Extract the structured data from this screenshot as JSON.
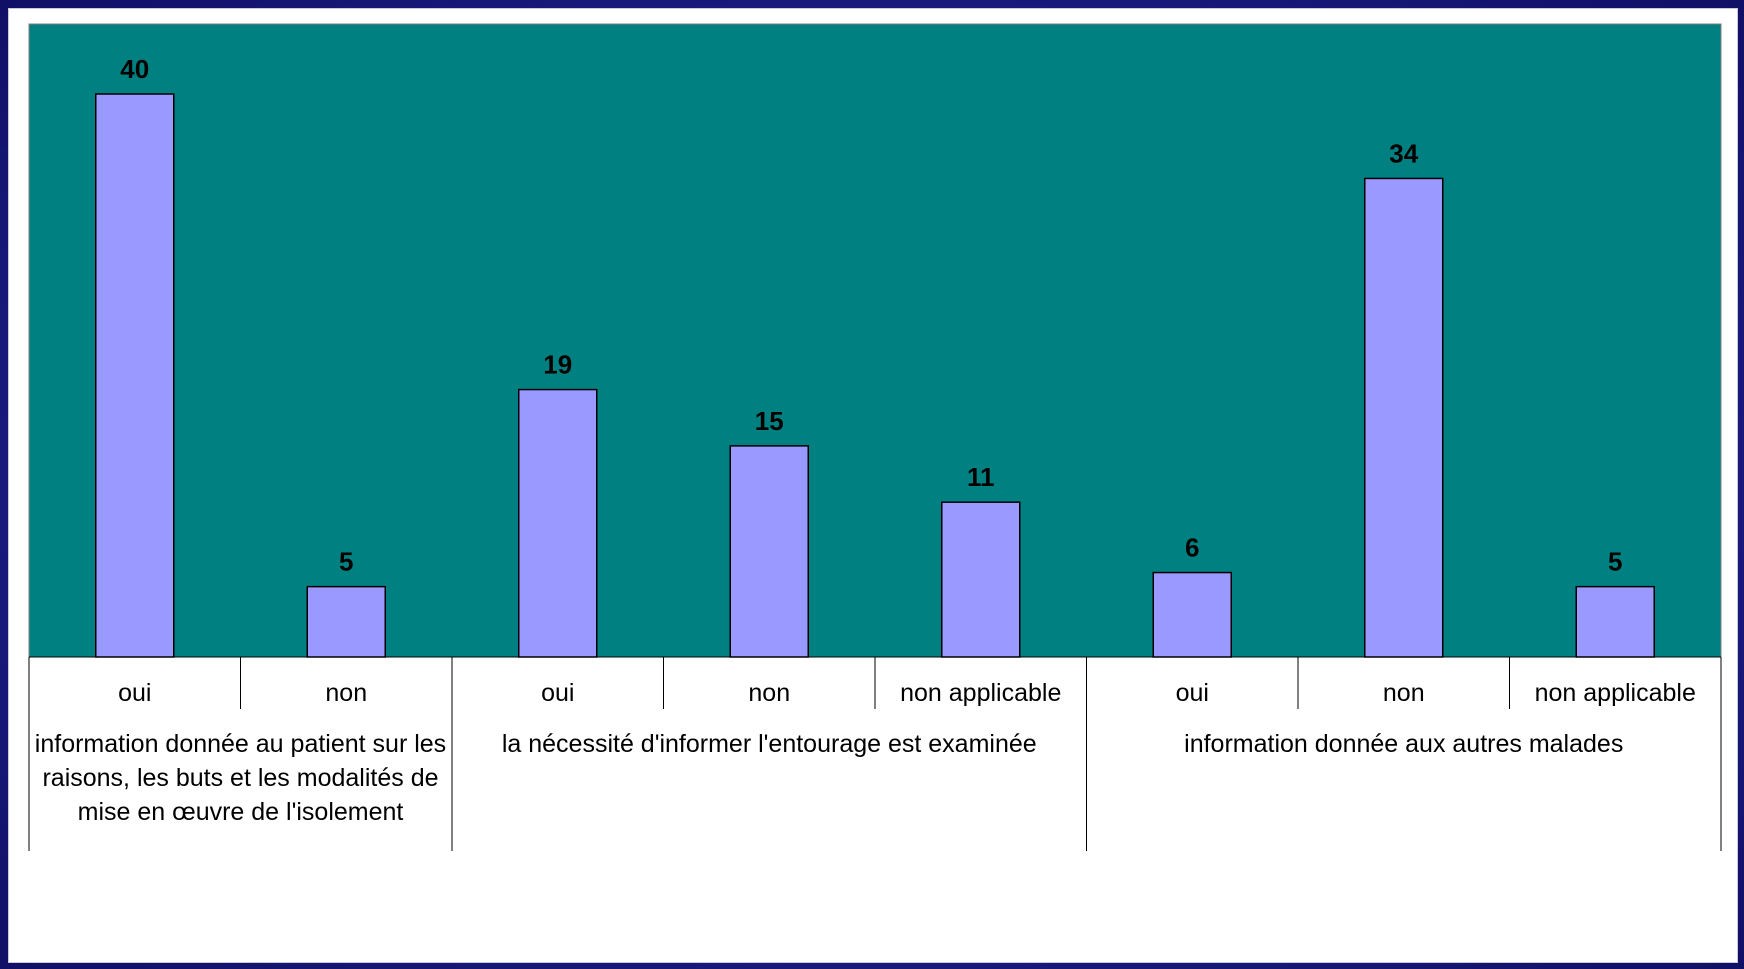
{
  "chart_data": {
    "type": "bar",
    "categories": [
      "oui",
      "non",
      "oui",
      "non",
      "non applicable",
      "oui",
      "non",
      "non applicable"
    ],
    "values": [
      40,
      5,
      19,
      15,
      11,
      6,
      34,
      5
    ],
    "groups": [
      {
        "label": "information donnée au patient sur les raisons, les buts et les modalités de mise en œuvre de l'isolement",
        "count": 2
      },
      {
        "label": "la nécessité d'informer l'entourage est examinée",
        "count": 3
      },
      {
        "label": "information donnée aux autres malades",
        "count": 3
      }
    ],
    "ylim": [
      0,
      40
    ],
    "grid": false,
    "legend": "none",
    "data_labels": true
  },
  "colors": {
    "plot_background": "#008080",
    "bar_fill": "#9999ff",
    "bar_stroke": "#000000",
    "frame_background": "#1c1c84"
  }
}
